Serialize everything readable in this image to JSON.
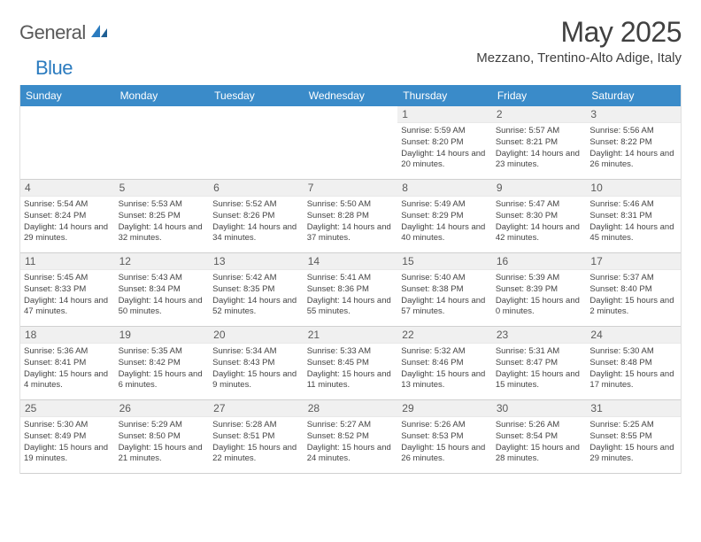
{
  "logo": {
    "word1": "General",
    "word2": "Blue"
  },
  "title": "May 2025",
  "location": "Mezzano, Trentino-Alto Adige, Italy",
  "colors": {
    "header_bg": "#3a8bc9",
    "header_fg": "#ffffff",
    "daybar_bg": "#f0f0f0",
    "text": "#404040"
  },
  "daysOfWeek": [
    "Sunday",
    "Monday",
    "Tuesday",
    "Wednesday",
    "Thursday",
    "Friday",
    "Saturday"
  ],
  "grid": {
    "leadingBlanks": 4,
    "days": [
      {
        "n": 1,
        "rise": "5:59 AM",
        "set": "8:20 PM",
        "dl": "14 hours and 20 minutes."
      },
      {
        "n": 2,
        "rise": "5:57 AM",
        "set": "8:21 PM",
        "dl": "14 hours and 23 minutes."
      },
      {
        "n": 3,
        "rise": "5:56 AM",
        "set": "8:22 PM",
        "dl": "14 hours and 26 minutes."
      },
      {
        "n": 4,
        "rise": "5:54 AM",
        "set": "8:24 PM",
        "dl": "14 hours and 29 minutes."
      },
      {
        "n": 5,
        "rise": "5:53 AM",
        "set": "8:25 PM",
        "dl": "14 hours and 32 minutes."
      },
      {
        "n": 6,
        "rise": "5:52 AM",
        "set": "8:26 PM",
        "dl": "14 hours and 34 minutes."
      },
      {
        "n": 7,
        "rise": "5:50 AM",
        "set": "8:28 PM",
        "dl": "14 hours and 37 minutes."
      },
      {
        "n": 8,
        "rise": "5:49 AM",
        "set": "8:29 PM",
        "dl": "14 hours and 40 minutes."
      },
      {
        "n": 9,
        "rise": "5:47 AM",
        "set": "8:30 PM",
        "dl": "14 hours and 42 minutes."
      },
      {
        "n": 10,
        "rise": "5:46 AM",
        "set": "8:31 PM",
        "dl": "14 hours and 45 minutes."
      },
      {
        "n": 11,
        "rise": "5:45 AM",
        "set": "8:33 PM",
        "dl": "14 hours and 47 minutes."
      },
      {
        "n": 12,
        "rise": "5:43 AM",
        "set": "8:34 PM",
        "dl": "14 hours and 50 minutes."
      },
      {
        "n": 13,
        "rise": "5:42 AM",
        "set": "8:35 PM",
        "dl": "14 hours and 52 minutes."
      },
      {
        "n": 14,
        "rise": "5:41 AM",
        "set": "8:36 PM",
        "dl": "14 hours and 55 minutes."
      },
      {
        "n": 15,
        "rise": "5:40 AM",
        "set": "8:38 PM",
        "dl": "14 hours and 57 minutes."
      },
      {
        "n": 16,
        "rise": "5:39 AM",
        "set": "8:39 PM",
        "dl": "15 hours and 0 minutes."
      },
      {
        "n": 17,
        "rise": "5:37 AM",
        "set": "8:40 PM",
        "dl": "15 hours and 2 minutes."
      },
      {
        "n": 18,
        "rise": "5:36 AM",
        "set": "8:41 PM",
        "dl": "15 hours and 4 minutes."
      },
      {
        "n": 19,
        "rise": "5:35 AM",
        "set": "8:42 PM",
        "dl": "15 hours and 6 minutes."
      },
      {
        "n": 20,
        "rise": "5:34 AM",
        "set": "8:43 PM",
        "dl": "15 hours and 9 minutes."
      },
      {
        "n": 21,
        "rise": "5:33 AM",
        "set": "8:45 PM",
        "dl": "15 hours and 11 minutes."
      },
      {
        "n": 22,
        "rise": "5:32 AM",
        "set": "8:46 PM",
        "dl": "15 hours and 13 minutes."
      },
      {
        "n": 23,
        "rise": "5:31 AM",
        "set": "8:47 PM",
        "dl": "15 hours and 15 minutes."
      },
      {
        "n": 24,
        "rise": "5:30 AM",
        "set": "8:48 PM",
        "dl": "15 hours and 17 minutes."
      },
      {
        "n": 25,
        "rise": "5:30 AM",
        "set": "8:49 PM",
        "dl": "15 hours and 19 minutes."
      },
      {
        "n": 26,
        "rise": "5:29 AM",
        "set": "8:50 PM",
        "dl": "15 hours and 21 minutes."
      },
      {
        "n": 27,
        "rise": "5:28 AM",
        "set": "8:51 PM",
        "dl": "15 hours and 22 minutes."
      },
      {
        "n": 28,
        "rise": "5:27 AM",
        "set": "8:52 PM",
        "dl": "15 hours and 24 minutes."
      },
      {
        "n": 29,
        "rise": "5:26 AM",
        "set": "8:53 PM",
        "dl": "15 hours and 26 minutes."
      },
      {
        "n": 30,
        "rise": "5:26 AM",
        "set": "8:54 PM",
        "dl": "15 hours and 28 minutes."
      },
      {
        "n": 31,
        "rise": "5:25 AM",
        "set": "8:55 PM",
        "dl": "15 hours and 29 minutes."
      }
    ]
  },
  "labels": {
    "sunrise": "Sunrise: ",
    "sunset": "Sunset: ",
    "daylight": "Daylight: "
  }
}
